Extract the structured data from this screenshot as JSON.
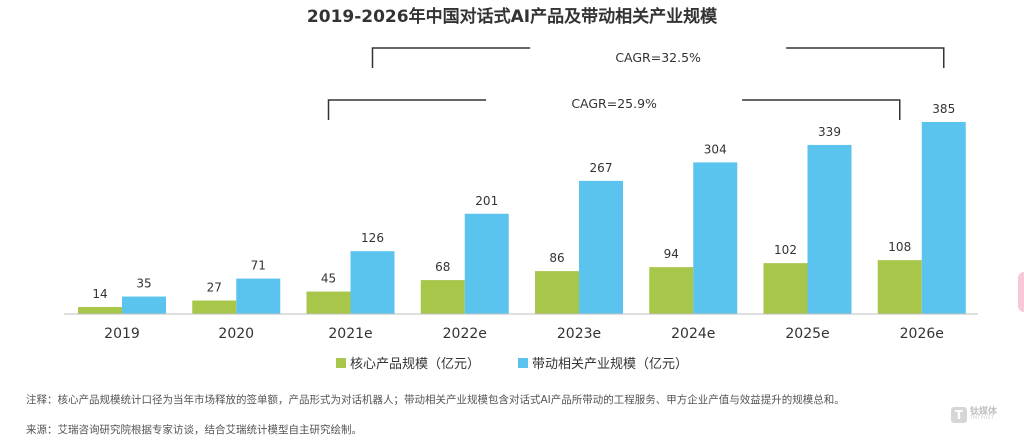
{
  "chart_data": {
    "type": "bar",
    "title": "2019-2026年中国对话式AI产品及带动相关产业规模",
    "categories": [
      "2019",
      "2020",
      "2021e",
      "2022e",
      "2023e",
      "2024e",
      "2025e",
      "2026e"
    ],
    "series": [
      {
        "name": "核心产品规模（亿元）",
        "values": [
          14,
          27,
          45,
          68,
          86,
          94,
          102,
          108
        ],
        "color": "#a7c64a"
      },
      {
        "name": "带动相关产业规模（亿元）",
        "values": [
          35,
          71,
          126,
          201,
          267,
          304,
          339,
          385
        ],
        "color": "#5bc4ee"
      }
    ],
    "ylim": [
      0,
      385
    ],
    "grid": false,
    "legend_position": "bottom",
    "annotations": [
      {
        "text": "CAGR=25.9%",
        "from_category": "2021e",
        "to_category": "2026e",
        "series": "核心产品规模（亿元）"
      },
      {
        "text": "CAGR=32.5%",
        "from_category": "2021e",
        "to_category": "2026e",
        "series": "带动相关产业规模（亿元）"
      }
    ]
  },
  "notes": {
    "line1": "注释：核心产品规模统计口径为当年市场释放的签单额，产品形式为对话机器人；带动相关产业规模包含对话式AI产品所带动的工程服务、甲方企业产值与效益提升的规模总和。",
    "line2": "来源：艾瑞咨询研究院根据专家访谈，结合艾瑞统计模型自主研究绘制。"
  },
  "watermark": {
    "label": "钛媒体",
    "sub": "TMTPOST",
    "glyph": "T"
  }
}
